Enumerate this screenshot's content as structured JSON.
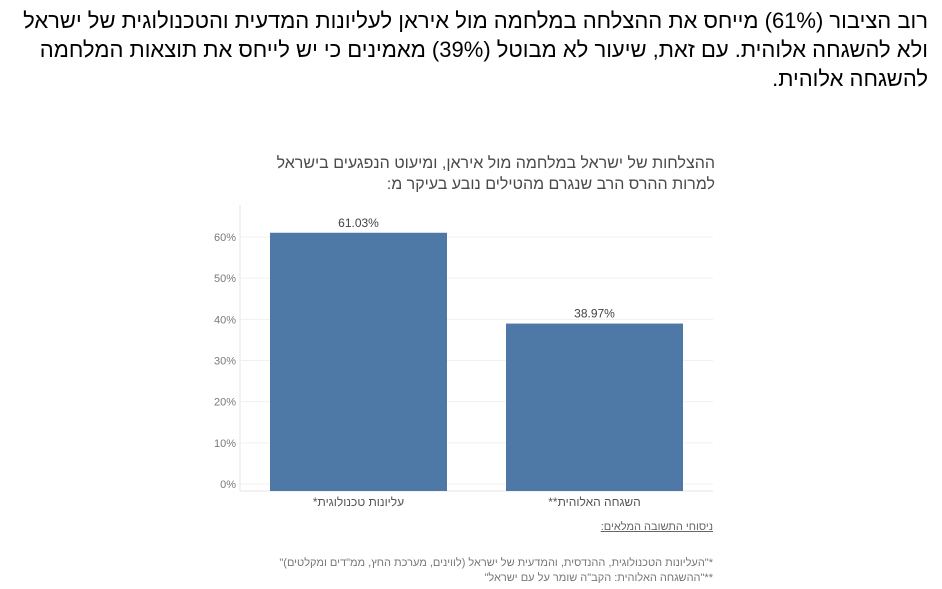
{
  "headline": "רוב הציבור (61%) מייחס את ההצלחה במלחמה מול איראן לעליונות המדעית והטכנולוגית של ישראל ולא להשגחה אלוהית. עם זאת, שיעור לא מבוטל (39%) מאמינים כי יש לייחס את תוצאות המלחמה להשגחה אלוהית.",
  "chart_data": {
    "type": "bar",
    "title": "ההצלחות של ישראל במלחמה מול איראן, ומיעוט הנפגעים בישראל למרות ההרס הרב שנגרם מהטילים נובע בעיקר מ:",
    "categories": [
      "עליונות טכנולוגית*",
      "השגחה האלוהית**"
    ],
    "values": [
      61.03,
      38.97
    ],
    "data_labels": [
      "61.03%",
      "38.97%"
    ],
    "yticks": [
      "0%",
      "10%",
      "20%",
      "30%",
      "40%",
      "50%",
      "60%"
    ],
    "ylim": [
      0,
      65
    ],
    "grid": true,
    "bar_color": "#4e79a7"
  },
  "footnotes": {
    "heading": "ניסוחי התשובה המלאים:",
    "items": [
      "*\"העליונות הטכנולוגית, ההנדסית, והמדעית של ישראל (לווינים, מערכת החץ, ממ\"דים ומקלטים)\"",
      "**\"ההשגחה האלוהית: הקב\"ה שומר על עם ישראל\""
    ]
  }
}
